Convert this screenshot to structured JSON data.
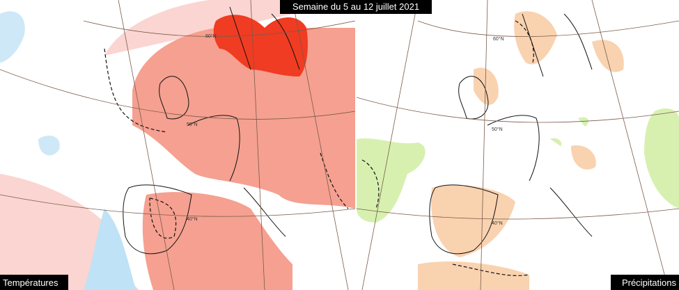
{
  "title": "Semaine du 5 au 12 juillet 2021",
  "panels": [
    {
      "label": "Températures",
      "latitudes": [
        "60°N",
        "50°N",
        "40°N"
      ]
    },
    {
      "label": "Précipitations",
      "latitudes": [
        "60°N",
        "50°N",
        "40°N"
      ]
    }
  ]
}
